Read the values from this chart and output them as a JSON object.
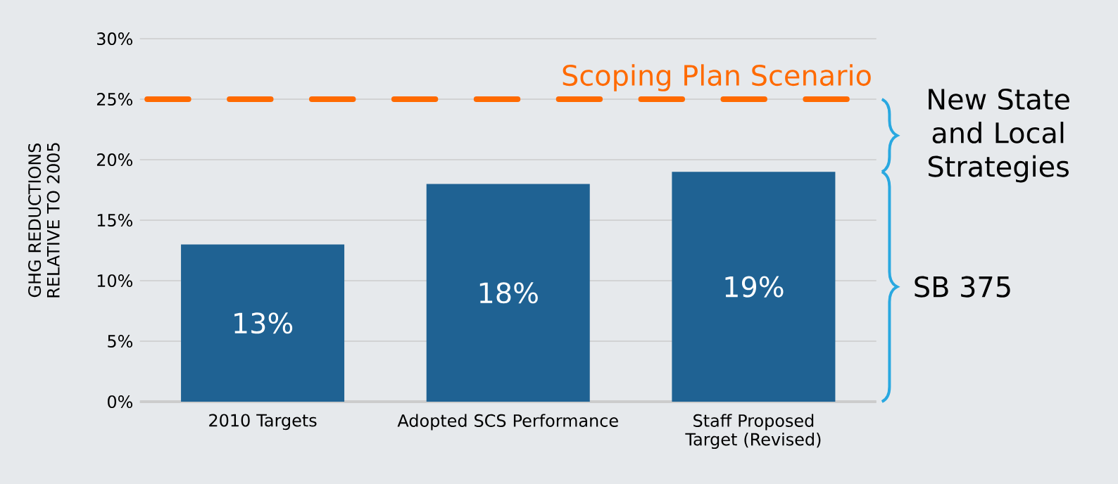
{
  "chart_data": {
    "type": "bar",
    "ylabel": "GHG REDUCTIONS RELATIVE TO 2005",
    "categories": [
      "2010 Targets",
      "Adopted SCS Performance",
      "Staff Proposed Target (Revised)"
    ],
    "values": [
      13,
      18,
      19
    ],
    "color": "#1f6293",
    "value_labels": [
      "13%",
      "18%",
      "19%"
    ],
    "ylim": [
      0,
      30
    ],
    "yticks": [
      {
        "value": 0,
        "label": "0%"
      },
      {
        "value": 5,
        "label": "5%"
      },
      {
        "value": 10,
        "label": "10%"
      },
      {
        "value": 15,
        "label": "15%"
      },
      {
        "value": 20,
        "label": "20%"
      },
      {
        "value": 25,
        "label": "25%"
      },
      {
        "value": 30,
        "label": "30%"
      }
    ],
    "grid": "y",
    "ref_lines": [
      {
        "axis": "y",
        "value": 25,
        "label": "Scoping Plan Scenario",
        "color": "#ff6a00",
        "line_style": "dashed"
      }
    ],
    "annotations": [
      "New State and Local Strategies",
      "SB 375"
    ]
  }
}
